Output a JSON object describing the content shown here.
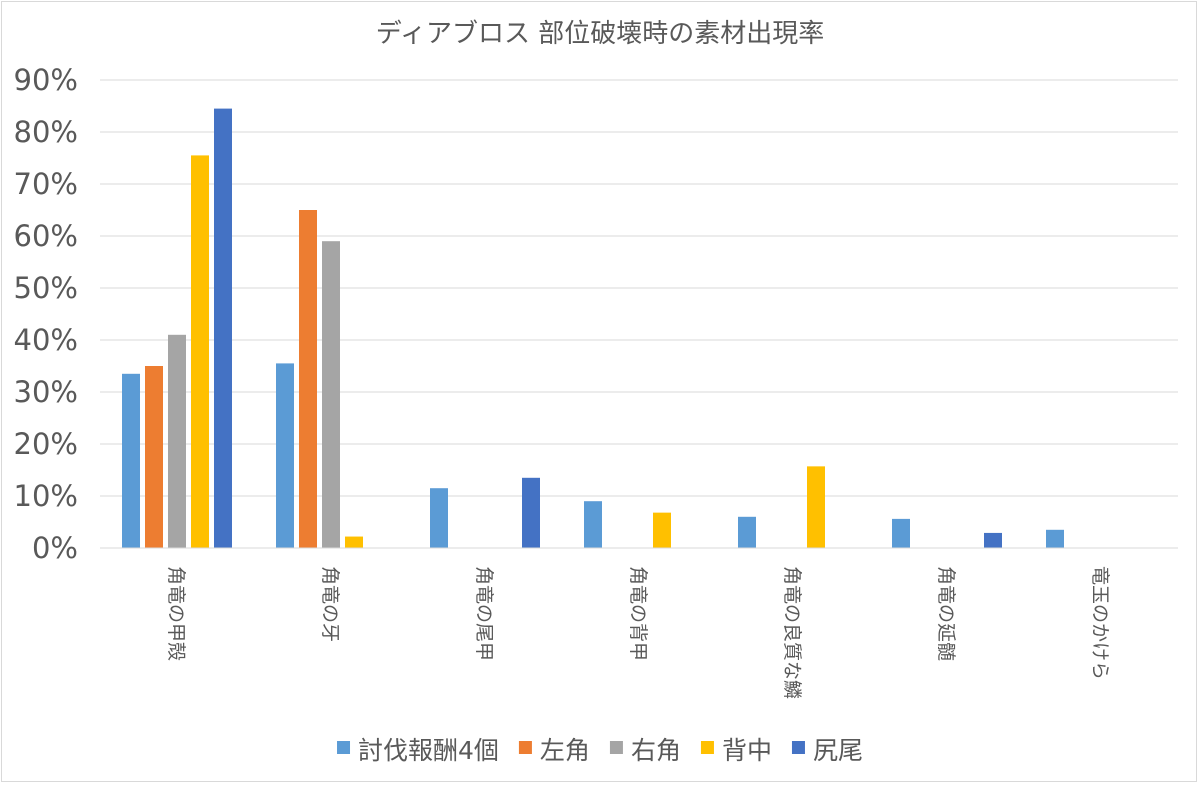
{
  "chart_data": {
    "type": "bar",
    "title": "ディアブロス  部位破壊時の素材出現率",
    "xlabel": "",
    "ylabel": "",
    "ylim": [
      0,
      0.9
    ],
    "yticks": [
      {
        "value": 0.0,
        "label": "0%"
      },
      {
        "value": 0.1,
        "label": "10%"
      },
      {
        "value": 0.2,
        "label": "20%"
      },
      {
        "value": 0.3,
        "label": "30%"
      },
      {
        "value": 0.4,
        "label": "40%"
      },
      {
        "value": 0.5,
        "label": "50%"
      },
      {
        "value": 0.6,
        "label": "60%"
      },
      {
        "value": 0.7,
        "label": "70%"
      },
      {
        "value": 0.8,
        "label": "80%"
      },
      {
        "value": 0.9,
        "label": "90%"
      }
    ],
    "grid": true,
    "legend_position": "bottom",
    "categories": [
      "角竜の甲殻",
      "角竜の牙",
      "角竜の尾甲",
      "角竜の背甲",
      "角竜の良質な鱗",
      "角竜の延髄",
      "竜玉のかけら"
    ],
    "series": [
      {
        "name": "討伐報酬4個",
        "color": "#5b9bd5",
        "values": [
          0.335,
          0.355,
          0.115,
          0.09,
          0.06,
          0.056,
          0.035
        ]
      },
      {
        "name": "左角",
        "color": "#ed7d31",
        "values": [
          0.35,
          0.65,
          null,
          null,
          null,
          null,
          null
        ]
      },
      {
        "name": "右角",
        "color": "#a5a5a5",
        "values": [
          0.41,
          0.59,
          null,
          null,
          null,
          null,
          null
        ]
      },
      {
        "name": "背中",
        "color": "#ffc000",
        "values": [
          0.755,
          0.022,
          null,
          0.068,
          0.157,
          null,
          null
        ]
      },
      {
        "name": "尻尾",
        "color": "#4472c4",
        "values": [
          0.845,
          null,
          0.135,
          null,
          null,
          0.029,
          null
        ]
      }
    ]
  }
}
